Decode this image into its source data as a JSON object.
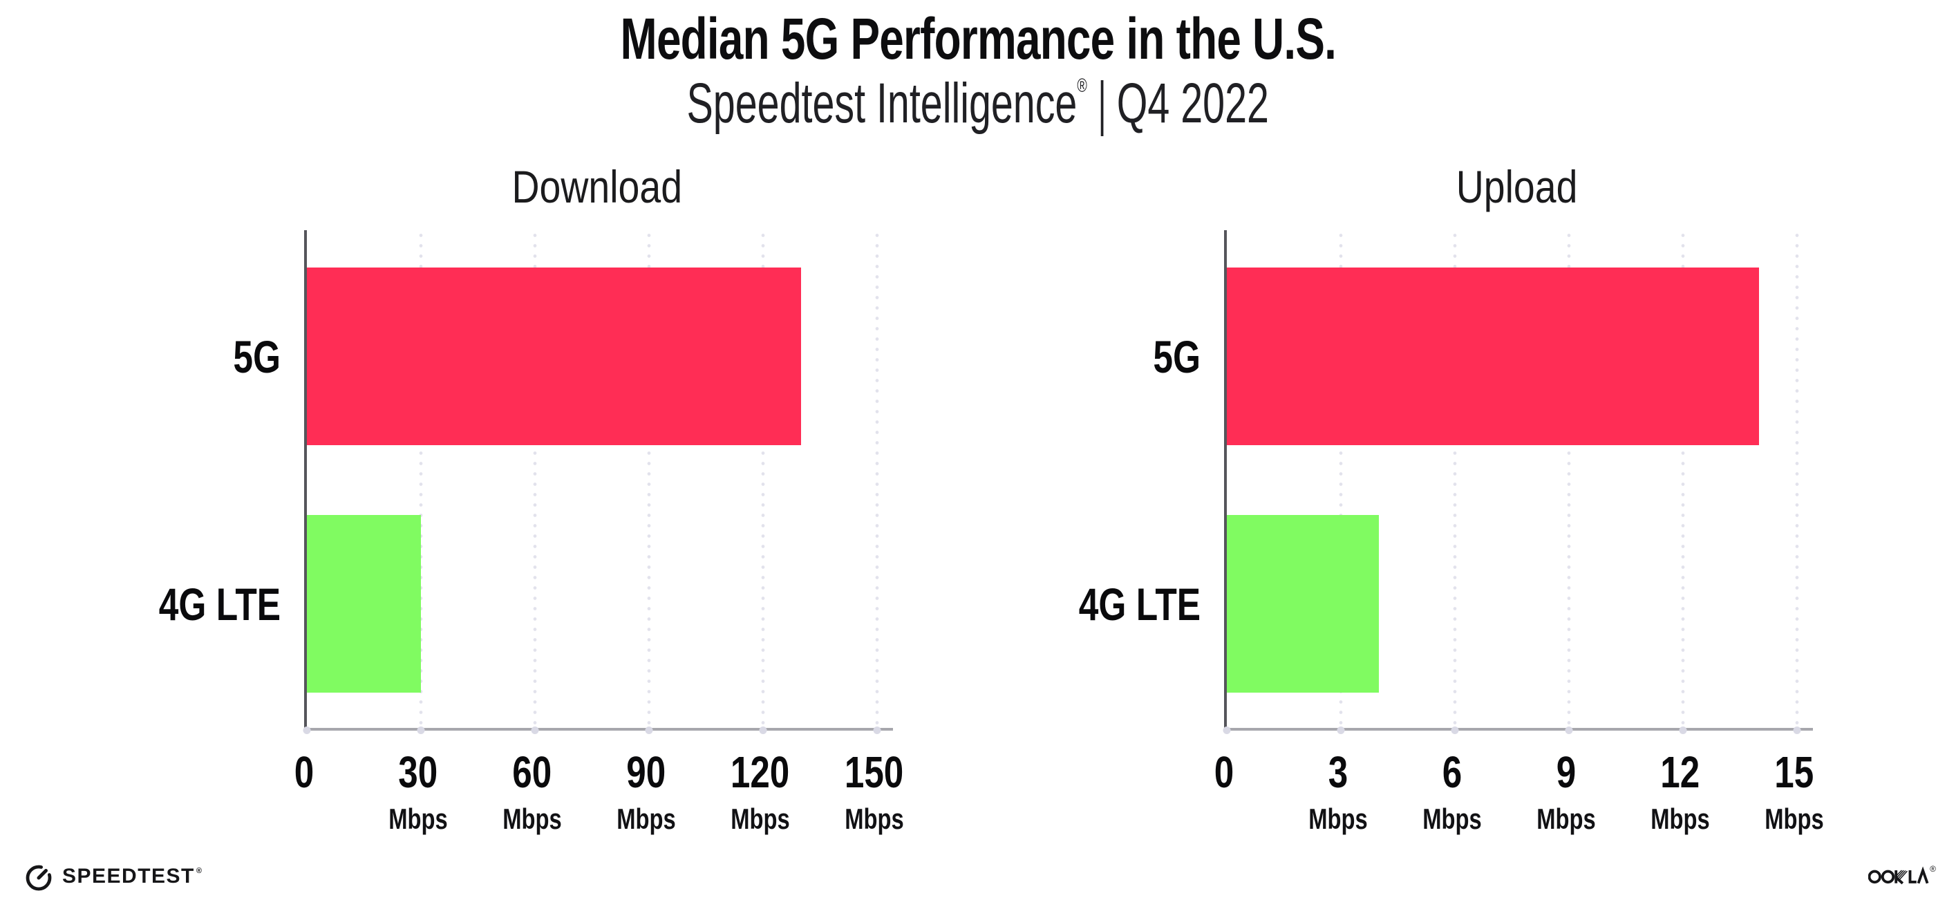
{
  "title": "Median 5G Performance in the U.S.",
  "subtitle": {
    "brand": "Speedtest Intelligence",
    "registered": "®",
    "separator": "|",
    "period": "Q4 2022"
  },
  "chart_data": [
    {
      "type": "bar",
      "orientation": "horizontal",
      "title": "Download",
      "categories": [
        "5G",
        "4G LTE"
      ],
      "values": [
        130,
        30
      ],
      "unit": "Mbps",
      "xlabel": "",
      "ylabel": "",
      "xlim": [
        0,
        150
      ],
      "xticks": [
        0,
        30,
        60,
        90,
        120,
        150
      ],
      "bar_colors": [
        "#FF2D55",
        "#80FB61"
      ],
      "grid": "vertical-dotted",
      "legend": "none"
    },
    {
      "type": "bar",
      "orientation": "horizontal",
      "title": "Upload",
      "categories": [
        "5G",
        "4G LTE"
      ],
      "values": [
        14,
        4
      ],
      "unit": "Mbps",
      "xlabel": "",
      "ylabel": "",
      "xlim": [
        0,
        15
      ],
      "xticks": [
        0,
        3,
        6,
        9,
        12,
        15
      ],
      "bar_colors": [
        "#FF2D55",
        "#80FB61"
      ],
      "grid": "vertical-dotted",
      "legend": "none"
    }
  ],
  "footer": {
    "speedtest_label": "SPEEDTEST",
    "speedtest_registered": "®",
    "ookla_label": "OOKLA",
    "ookla_registered": "®"
  },
  "colors": {
    "bar_5g": "#FF2D55",
    "bar_4g_lte": "#80FB61",
    "gridline": "#E2E2EC",
    "axis_x": "#A7A7AD",
    "axis_y": "#55555B",
    "tick_dot": "#D9D9E5",
    "text": "#0D0D0F",
    "text_soft": "#202024"
  }
}
